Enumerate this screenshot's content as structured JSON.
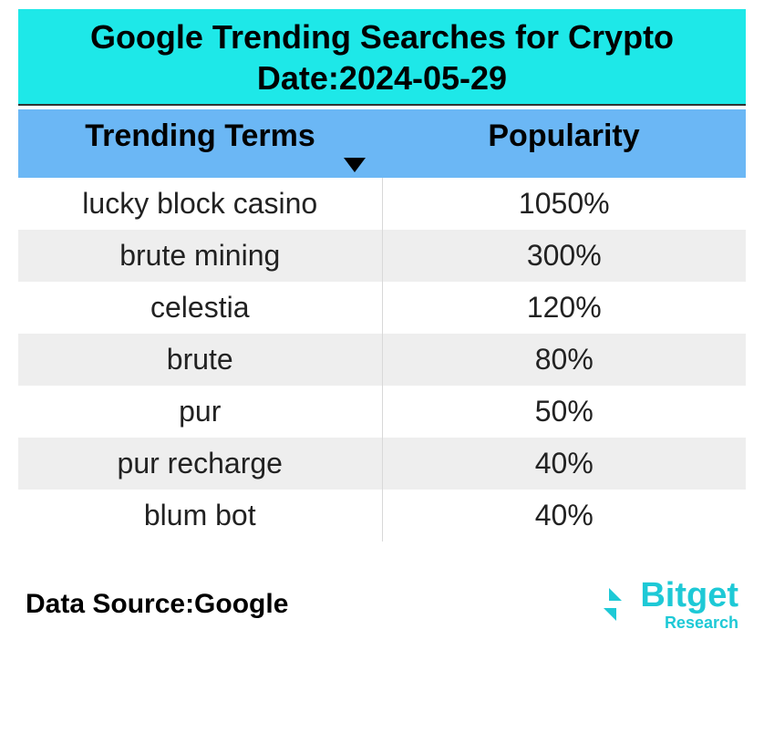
{
  "header": {
    "title_line1": "Google Trending Searches for Crypto",
    "title_line2": "Date:2024-05-29",
    "background_color": "#1ee8e8",
    "title_fontsize": 36,
    "title_color": "#000000"
  },
  "table": {
    "type": "table",
    "columns": [
      "Trending Terms",
      "Popularity"
    ],
    "header_bg": "#6bb7f5",
    "header_fontsize": 34,
    "cell_fontsize": 32,
    "row_alt_bg": "#eeeeee",
    "col_divider_color": "#d8d8d8",
    "sort_column_index": 0,
    "sort_direction": "desc",
    "rows": [
      {
        "term": "lucky block casino",
        "popularity": "1050%"
      },
      {
        "term": "brute mining",
        "popularity": "300%"
      },
      {
        "term": "celestia",
        "popularity": "120%"
      },
      {
        "term": "brute",
        "popularity": "80%"
      },
      {
        "term": "pur",
        "popularity": "50%"
      },
      {
        "term": "pur recharge",
        "popularity": "40%"
      },
      {
        "term": "blum bot",
        "popularity": "40%"
      }
    ]
  },
  "footer": {
    "source_label": "Data Source:Google",
    "source_fontsize": 30,
    "logo_brand": "Bitget",
    "logo_sub": "Research",
    "logo_color": "#1ec9d6"
  }
}
